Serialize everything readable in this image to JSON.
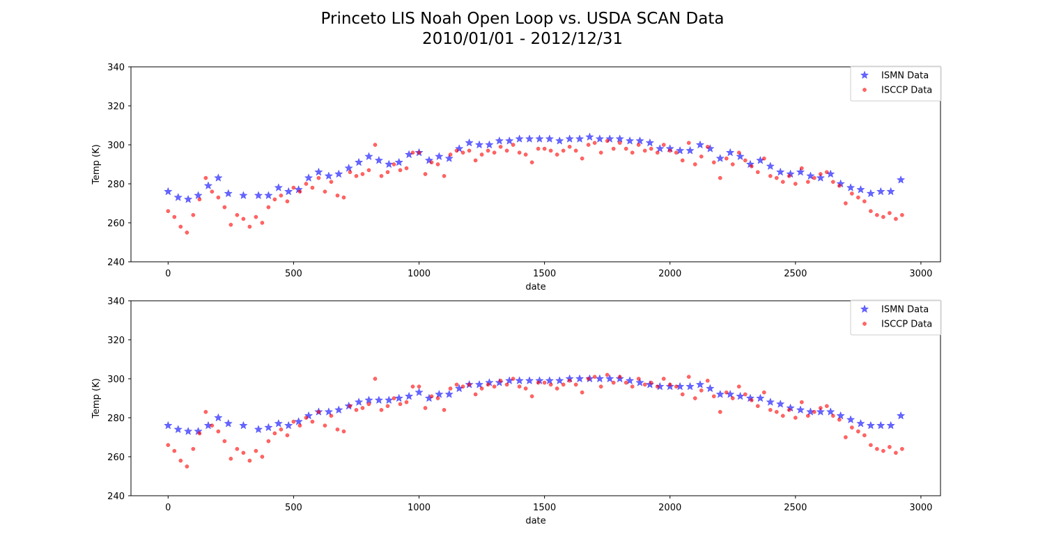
{
  "figure": {
    "title_line1": "Princeto LIS Noah Open Loop vs. USDA SCAN Data",
    "title_line2": "2010/01/01 - 2012/12/31"
  },
  "colors": {
    "ismn": "#0000ff",
    "isccp": "#ff0000",
    "axes": "#000000",
    "background": "#ffffff"
  },
  "chart_data": [
    {
      "type": "scatter",
      "xlabel": "date",
      "ylabel": "Temp (K)",
      "xlim": [
        -148,
        3078
      ],
      "ylim": [
        240,
        340
      ],
      "xticks": [
        0,
        500,
        1000,
        1500,
        2000,
        2500,
        3000
      ],
      "yticks": [
        240,
        260,
        280,
        300,
        320,
        340
      ],
      "grid": false,
      "legend_position": "top-right",
      "series": [
        {
          "name": "ISMN Data",
          "marker": "star",
          "color": "#0000ff",
          "x": [
            0,
            40,
            80,
            120,
            160,
            200,
            240,
            300,
            360,
            400,
            440,
            480,
            520,
            560,
            600,
            640,
            680,
            720,
            760,
            800,
            840,
            880,
            920,
            960,
            1000,
            1040,
            1080,
            1120,
            1160,
            1200,
            1240,
            1280,
            1320,
            1360,
            1400,
            1440,
            1480,
            1520,
            1560,
            1600,
            1640,
            1680,
            1720,
            1760,
            1800,
            1840,
            1880,
            1920,
            1960,
            2000,
            2040,
            2080,
            2120,
            2160,
            2200,
            2240,
            2280,
            2320,
            2360,
            2400,
            2440,
            2480,
            2520,
            2560,
            2600,
            2640,
            2680,
            2720,
            2760,
            2800,
            2840,
            2880,
            2920
          ],
          "y": [
            276,
            273,
            272,
            274,
            279,
            283,
            275,
            274,
            274,
            274,
            278,
            276,
            277,
            283,
            286,
            284,
            285,
            288,
            291,
            294,
            292,
            290,
            291,
            295,
            296,
            292,
            294,
            293,
            298,
            301,
            300,
            300,
            302,
            302,
            303,
            303,
            303,
            303,
            302,
            303,
            303,
            304,
            303,
            303,
            303,
            302,
            302,
            301,
            298,
            298,
            297,
            297,
            300,
            298,
            293,
            296,
            294,
            290,
            292,
            289,
            286,
            285,
            286,
            284,
            283,
            285,
            280,
            278,
            277,
            275,
            276,
            276,
            282
          ]
        },
        {
          "name": "ISCCP Data",
          "marker": "circle",
          "color": "#ff0000",
          "x": [
            0,
            25,
            50,
            75,
            100,
            125,
            150,
            175,
            200,
            225,
            250,
            275,
            300,
            325,
            350,
            375,
            400,
            425,
            450,
            475,
            500,
            525,
            550,
            575,
            600,
            625,
            650,
            675,
            700,
            725,
            750,
            775,
            800,
            825,
            850,
            875,
            900,
            925,
            950,
            975,
            1000,
            1025,
            1050,
            1075,
            1100,
            1125,
            1150,
            1175,
            1200,
            1225,
            1250,
            1275,
            1300,
            1325,
            1350,
            1375,
            1400,
            1425,
            1450,
            1475,
            1500,
            1525,
            1550,
            1575,
            1600,
            1625,
            1650,
            1675,
            1700,
            1725,
            1750,
            1775,
            1800,
            1825,
            1850,
            1875,
            1900,
            1925,
            1950,
            1975,
            2000,
            2025,
            2050,
            2075,
            2100,
            2125,
            2150,
            2175,
            2200,
            2225,
            2250,
            2275,
            2300,
            2325,
            2350,
            2375,
            2400,
            2425,
            2450,
            2475,
            2500,
            2525,
            2550,
            2575,
            2600,
            2625,
            2650,
            2675,
            2700,
            2725,
            2750,
            2775,
            2800,
            2825,
            2850,
            2875,
            2900,
            2925
          ],
          "y": [
            266,
            263,
            258,
            255,
            264,
            272,
            283,
            276,
            273,
            268,
            259,
            264,
            262,
            258,
            263,
            260,
            268,
            272,
            274,
            271,
            278,
            276,
            280,
            278,
            283,
            276,
            281,
            274,
            273,
            286,
            284,
            285,
            287,
            300,
            284,
            286,
            290,
            287,
            288,
            296,
            296,
            285,
            291,
            290,
            284,
            295,
            297,
            296,
            297,
            292,
            295,
            297,
            296,
            299,
            297,
            300,
            296,
            295,
            291,
            298,
            298,
            297,
            295,
            297,
            299,
            297,
            293,
            300,
            301,
            296,
            302,
            298,
            301,
            298,
            296,
            300,
            297,
            298,
            296,
            300,
            297,
            296,
            292,
            301,
            290,
            294,
            299,
            291,
            283,
            293,
            290,
            296,
            292,
            289,
            286,
            293,
            284,
            283,
            281,
            284,
            280,
            288,
            281,
            283,
            285,
            286,
            281,
            279,
            270,
            275,
            273,
            271,
            266,
            264,
            263,
            265,
            262,
            264
          ]
        }
      ]
    },
    {
      "type": "scatter",
      "xlabel": "date",
      "ylabel": "Temp (K)",
      "xlim": [
        -148,
        3078
      ],
      "ylim": [
        240,
        340
      ],
      "xticks": [
        0,
        500,
        1000,
        1500,
        2000,
        2500,
        3000
      ],
      "yticks": [
        240,
        260,
        280,
        300,
        320,
        340
      ],
      "grid": false,
      "legend_position": "top-right",
      "series": [
        {
          "name": "ISMN Data",
          "marker": "star",
          "color": "#0000ff",
          "x": [
            0,
            40,
            80,
            120,
            160,
            200,
            240,
            300,
            360,
            400,
            440,
            480,
            520,
            560,
            600,
            640,
            680,
            720,
            760,
            800,
            840,
            880,
            920,
            960,
            1000,
            1040,
            1080,
            1120,
            1160,
            1200,
            1240,
            1280,
            1320,
            1360,
            1400,
            1440,
            1480,
            1520,
            1560,
            1600,
            1640,
            1680,
            1720,
            1760,
            1800,
            1840,
            1880,
            1920,
            1960,
            2000,
            2040,
            2080,
            2120,
            2160,
            2200,
            2240,
            2280,
            2320,
            2360,
            2400,
            2440,
            2480,
            2520,
            2560,
            2600,
            2640,
            2680,
            2720,
            2760,
            2800,
            2840,
            2880,
            2920
          ],
          "y": [
            276,
            274,
            273,
            273,
            276,
            280,
            277,
            276,
            274,
            275,
            277,
            276,
            278,
            281,
            283,
            283,
            284,
            286,
            288,
            289,
            289,
            289,
            290,
            291,
            293,
            290,
            292,
            292,
            295,
            297,
            297,
            298,
            298,
            299,
            299,
            299,
            299,
            299,
            299,
            300,
            300,
            300,
            300,
            300,
            300,
            299,
            298,
            297,
            296,
            296,
            296,
            296,
            297,
            295,
            292,
            292,
            291,
            290,
            290,
            288,
            287,
            285,
            284,
            283,
            283,
            283,
            281,
            279,
            277,
            276,
            276,
            276,
            281
          ]
        },
        {
          "name": "ISCCP Data",
          "marker": "circle",
          "color": "#ff0000",
          "x": [
            0,
            25,
            50,
            75,
            100,
            125,
            150,
            175,
            200,
            225,
            250,
            275,
            300,
            325,
            350,
            375,
            400,
            425,
            450,
            475,
            500,
            525,
            550,
            575,
            600,
            625,
            650,
            675,
            700,
            725,
            750,
            775,
            800,
            825,
            850,
            875,
            900,
            925,
            950,
            975,
            1000,
            1025,
            1050,
            1075,
            1100,
            1125,
            1150,
            1175,
            1200,
            1225,
            1250,
            1275,
            1300,
            1325,
            1350,
            1375,
            1400,
            1425,
            1450,
            1475,
            1500,
            1525,
            1550,
            1575,
            1600,
            1625,
            1650,
            1675,
            1700,
            1725,
            1750,
            1775,
            1800,
            1825,
            1850,
            1875,
            1900,
            1925,
            1950,
            1975,
            2000,
            2025,
            2050,
            2075,
            2100,
            2125,
            2150,
            2175,
            2200,
            2225,
            2250,
            2275,
            2300,
            2325,
            2350,
            2375,
            2400,
            2425,
            2450,
            2475,
            2500,
            2525,
            2550,
            2575,
            2600,
            2625,
            2650,
            2675,
            2700,
            2725,
            2750,
            2775,
            2800,
            2825,
            2850,
            2875,
            2900,
            2925
          ],
          "y": [
            266,
            263,
            258,
            255,
            264,
            272,
            283,
            276,
            273,
            268,
            259,
            264,
            262,
            258,
            263,
            260,
            268,
            272,
            274,
            271,
            278,
            276,
            280,
            278,
            283,
            276,
            281,
            274,
            273,
            286,
            284,
            285,
            287,
            300,
            284,
            286,
            290,
            287,
            288,
            296,
            296,
            285,
            291,
            290,
            284,
            295,
            297,
            296,
            297,
            292,
            295,
            297,
            296,
            299,
            297,
            300,
            296,
            295,
            291,
            298,
            298,
            297,
            295,
            297,
            299,
            297,
            293,
            300,
            301,
            296,
            302,
            298,
            301,
            298,
            296,
            300,
            297,
            298,
            296,
            300,
            297,
            296,
            292,
            301,
            290,
            294,
            299,
            291,
            283,
            293,
            290,
            296,
            292,
            289,
            286,
            293,
            284,
            283,
            281,
            284,
            280,
            288,
            281,
            283,
            285,
            286,
            281,
            279,
            270,
            275,
            273,
            271,
            266,
            264,
            263,
            265,
            262,
            264
          ]
        }
      ]
    }
  ]
}
